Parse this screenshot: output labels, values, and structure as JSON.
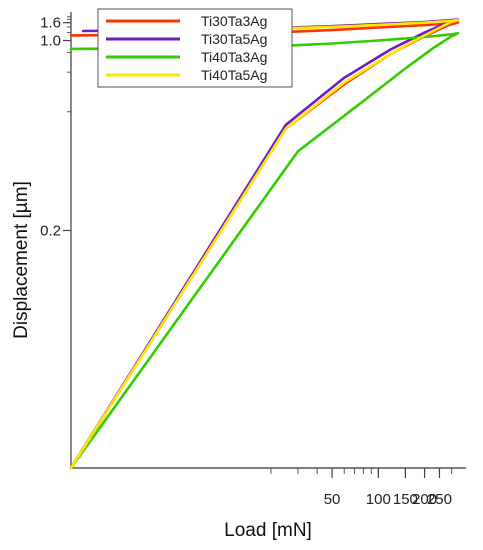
{
  "chart_data": {
    "type": "line",
    "title": "",
    "xlabel": "Load [mN]",
    "ylabel": "Displacement [µm]",
    "x_scale": "log",
    "y_scale": "reciprocal",
    "xlim": [
      1,
      330
    ],
    "ylim": [
      0.1,
      2.5
    ],
    "x_tick_labels": [
      {
        "value": 50,
        "label": "50"
      },
      {
        "value": 100,
        "label": "100"
      },
      {
        "value": 150,
        "label": "150"
      },
      {
        "value": 200,
        "label": "200"
      },
      {
        "value": 250,
        "label": "250"
      }
    ],
    "y_tick_labels": [
      {
        "value": 0.2,
        "label": "0.2"
      },
      {
        "value": 1.0,
        "label": "1.0"
      },
      {
        "value": 1.6,
        "label": "1.6"
      }
    ],
    "grid": false,
    "legend_position": "top-center",
    "series": [
      {
        "name": "Ti30Ta3Ag",
        "color": "#ff3300",
        "loading": [
          [
            1,
            0.1
          ],
          [
            25,
            0.35
          ],
          [
            60,
            0.52
          ],
          [
            120,
            0.78
          ],
          [
            200,
            1.1
          ],
          [
            290,
            1.5
          ],
          [
            320,
            1.58
          ]
        ],
        "unloading": [
          [
            330,
            1.61
          ],
          [
            300,
            1.56
          ],
          [
            200,
            1.48
          ],
          [
            100,
            1.38
          ],
          [
            50,
            1.28
          ],
          [
            20,
            1.2
          ],
          [
            8,
            1.15
          ],
          [
            1,
            1.12
          ]
        ]
      },
      {
        "name": "Ti30Ta5Ag",
        "color": "#6a1fbf",
        "loading": [
          [
            1,
            0.1
          ],
          [
            25,
            0.36
          ],
          [
            60,
            0.56
          ],
          [
            120,
            0.84
          ],
          [
            200,
            1.2
          ],
          [
            290,
            1.65
          ],
          [
            320,
            1.76
          ]
        ],
        "unloading": [
          [
            330,
            1.79
          ],
          [
            300,
            1.76
          ],
          [
            200,
            1.64
          ],
          [
            100,
            1.53
          ],
          [
            50,
            1.43
          ],
          [
            20,
            1.35
          ],
          [
            8,
            1.3
          ],
          [
            1.2,
            1.25
          ]
        ]
      },
      {
        "name": "Ti40Ta3Ag",
        "color": "#33cc00",
        "loading": [
          [
            1,
            0.1
          ],
          [
            30,
            0.3
          ],
          [
            80,
            0.44
          ],
          [
            150,
            0.63
          ],
          [
            230,
            0.87
          ],
          [
            300,
            1.1
          ],
          [
            320,
            1.15
          ]
        ],
        "unloading": [
          [
            330,
            1.18
          ],
          [
            300,
            1.15
          ],
          [
            200,
            1.08
          ],
          [
            100,
            1.0
          ],
          [
            50,
            0.94
          ],
          [
            20,
            0.89
          ],
          [
            5,
            0.86
          ],
          [
            1,
            0.85
          ]
        ]
      },
      {
        "name": "Ti40Ta5Ag",
        "color": "#ffe600",
        "loading": [
          [
            1,
            0.1
          ],
          [
            25,
            0.35
          ],
          [
            60,
            0.53
          ],
          [
            120,
            0.78
          ],
          [
            200,
            1.12
          ],
          [
            290,
            1.6
          ],
          [
            320,
            1.72
          ]
        ],
        "unloading": [
          [
            330,
            1.75
          ],
          [
            300,
            1.71
          ],
          [
            200,
            1.6
          ],
          [
            100,
            1.49
          ],
          [
            50,
            1.4
          ],
          [
            20,
            1.33
          ],
          [
            8,
            1.28
          ],
          [
            3,
            1.25
          ]
        ]
      }
    ]
  }
}
